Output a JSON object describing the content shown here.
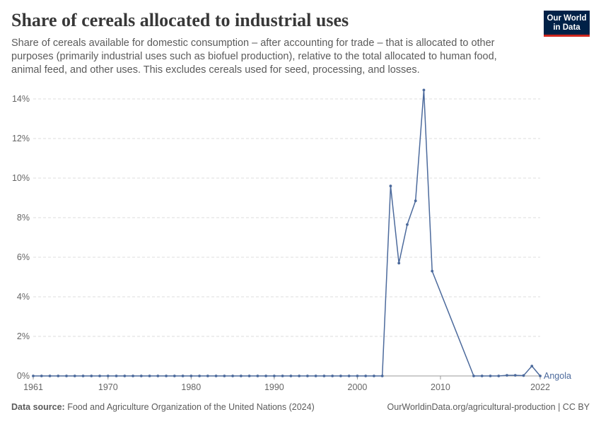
{
  "header": {
    "title": "Share of cereals allocated to industrial uses",
    "subtitle": "Share of cereals available for domestic consumption – after accounting for trade – that is allocated to other purposes (primarily industrial uses such as biofuel production), relative to the total allocated to human food, animal feed, and other uses. This excludes cereals used for seed, processing, and losses.",
    "logo_line1": "Our World",
    "logo_line2": "in Data"
  },
  "footer": {
    "source_label": "Data source:",
    "source_text": "Food and Agriculture Organization of the United Nations (2024)",
    "url_license": "OurWorldinData.org/agricultural-production | CC BY"
  },
  "colors": {
    "series": "#4c6a9c",
    "grid": "#dddddd",
    "axis": "#999999"
  },
  "chart_data": {
    "type": "line",
    "title": "Share of cereals allocated to industrial uses",
    "xlabel": "",
    "ylabel": "",
    "xlim": [
      1961,
      2022
    ],
    "ylim": [
      0,
      14
    ],
    "y_ticks": [
      0,
      2,
      4,
      6,
      8,
      10,
      12,
      14
    ],
    "y_tick_labels": [
      "0%",
      "2%",
      "4%",
      "6%",
      "8%",
      "10%",
      "12%",
      "14%"
    ],
    "x_ticks": [
      1961,
      1970,
      1980,
      1990,
      2000,
      2010,
      2022
    ],
    "x_tick_labels": [
      "1961",
      "1970",
      "1980",
      "1990",
      "2000",
      "2010",
      "2022"
    ],
    "grid": "horizontal dashed",
    "series": [
      {
        "name": "Angola",
        "x": [
          1961,
          1962,
          1963,
          1964,
          1965,
          1966,
          1967,
          1968,
          1969,
          1970,
          1971,
          1972,
          1973,
          1974,
          1975,
          1976,
          1977,
          1978,
          1979,
          1980,
          1981,
          1982,
          1983,
          1984,
          1985,
          1986,
          1987,
          1988,
          1989,
          1990,
          1991,
          1992,
          1993,
          1994,
          1995,
          1996,
          1997,
          1998,
          1999,
          2000,
          2001,
          2002,
          2003,
          2004,
          2005,
          2006,
          2007,
          2008,
          2009,
          2014,
          2015,
          2016,
          2017,
          2018,
          2019,
          2020,
          2021,
          2022
        ],
        "y": [
          0,
          0,
          0,
          0,
          0,
          0,
          0,
          0,
          0,
          0,
          0,
          0,
          0,
          0,
          0,
          0,
          0,
          0,
          0,
          0,
          0,
          0,
          0,
          0,
          0,
          0,
          0,
          0,
          0,
          0,
          0,
          0,
          0,
          0,
          0,
          0,
          0,
          0,
          0,
          0,
          0,
          0,
          0,
          9.6,
          5.7,
          7.65,
          8.85,
          14.45,
          5.3,
          0,
          0,
          0,
          0,
          0.03,
          0.03,
          0.02,
          0.5,
          0
        ]
      }
    ]
  }
}
